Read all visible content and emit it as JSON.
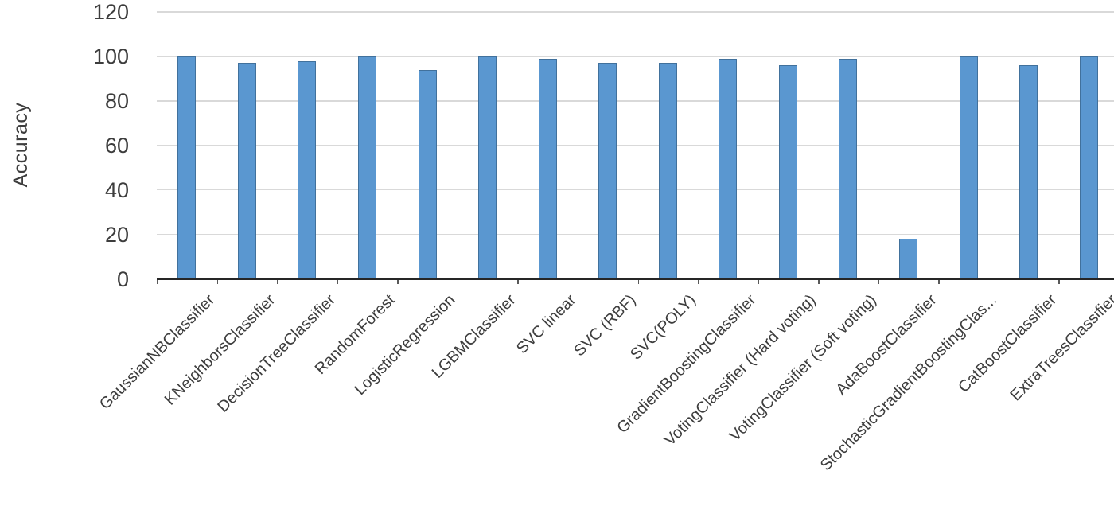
{
  "chart_data": {
    "type": "bar",
    "title": "",
    "xlabel": "",
    "ylabel": "Accuracy",
    "ylim": [
      0,
      120
    ],
    "yticks": [
      0,
      20,
      40,
      60,
      80,
      100,
      120
    ],
    "grid": "horizontal",
    "legend": "none",
    "categories": [
      "GaussianNBClassifier",
      "KNeighborsClassifier",
      "DecisionTreeClassifier",
      "RandomForest",
      "LogisticRegression",
      "LGBMClassifier",
      "SVC linear",
      "SVC (RBF)",
      "SVC(POLY)",
      "GradientBoostingClassifier",
      "VotingClassifier (Hard voting)",
      "VotingClassifier (Soft voting)",
      "AdaBoostClassifier",
      "StochasticGradientBoostingClas...",
      "CatBoostClassifier",
      "ExtraTreesClassifier"
    ],
    "values": [
      100,
      97,
      98,
      100,
      94,
      100,
      99,
      97,
      97,
      99,
      96,
      99,
      18,
      100,
      96,
      100
    ],
    "colors": {
      "bar_fill": "#5a97d0",
      "bar_border": "#41719c",
      "gridline": "#d9d9d9",
      "axis_line": "#262626",
      "axis_tick": "#595959",
      "tick_text": "#3d3d3d",
      "label_text": "#3d3d3d"
    }
  }
}
